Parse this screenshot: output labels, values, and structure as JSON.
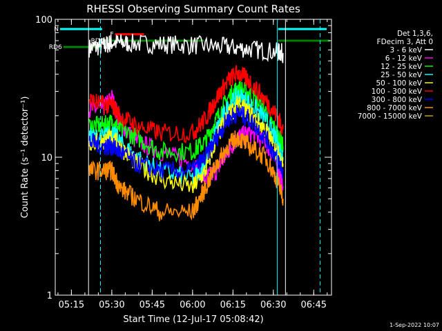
{
  "chart_data": {
    "type": "line",
    "title": "RHESSI Observing Summary Count Rates",
    "xlabel": "Start Time (12-Jul-17 05:08:42)",
    "ylabel": "Count Rate (s⁻¹ detector⁻¹)",
    "yscale": "log",
    "xlim": [
      5.15,
      6.86
    ],
    "ylim": [
      1,
      100
    ],
    "x_ticks": [
      {
        "t": 5.25,
        "label": "05:15"
      },
      {
        "t": 5.5,
        "label": "05:30"
      },
      {
        "t": 5.75,
        "label": "05:45"
      },
      {
        "t": 6.0,
        "label": "06:00"
      },
      {
        "t": 6.25,
        "label": "06:15"
      },
      {
        "t": 6.5,
        "label": "06:30"
      },
      {
        "t": 6.75,
        "label": "06:45"
      }
    ],
    "y_ticks": [
      {
        "v": 1,
        "label": "1"
      },
      {
        "v": 10,
        "label": "10"
      },
      {
        "v": 100,
        "label": "100"
      }
    ],
    "legend": {
      "placement": "right",
      "header": [
        "Det 1,3,6,",
        "FDecim 3, Att 0"
      ]
    },
    "series": [
      {
        "name": "3 - 6 keV",
        "color": "#ffffff",
        "x": [
          5.36,
          5.45,
          5.5,
          5.6,
          5.8,
          6.0,
          6.2,
          6.35,
          6.52,
          6.56
        ],
        "values": [
          62,
          64,
          68,
          67,
          66,
          65,
          63,
          61,
          58,
          57
        ]
      },
      {
        "name": "6 - 12 keV",
        "color": "#ff00ff",
        "x": [
          5.36,
          5.45,
          5.5,
          5.55,
          5.65,
          5.8,
          6.0,
          6.08,
          6.15,
          6.22,
          6.28,
          6.35,
          6.45,
          6.52,
          6.56
        ],
        "values": [
          22,
          23,
          27,
          18,
          13,
          11,
          9,
          7,
          8,
          11,
          14,
          15,
          13,
          9,
          6
        ]
      },
      {
        "name": "12 - 25 keV",
        "color": "#00ff00",
        "x": [
          5.36,
          5.45,
          5.5,
          5.55,
          5.65,
          5.8,
          6.0,
          6.08,
          6.15,
          6.22,
          6.28,
          6.35,
          6.45,
          6.52,
          6.56
        ],
        "values": [
          17,
          17,
          18,
          16,
          14,
          11,
          11,
          13,
          19,
          27,
          32,
          29,
          22,
          15,
          12
        ]
      },
      {
        "name": "25 - 50 keV",
        "color": "#00ffff",
        "x": [
          5.36,
          5.45,
          5.5,
          5.55,
          5.65,
          5.8,
          6.0,
          6.08,
          6.15,
          6.22,
          6.28,
          6.35,
          6.45,
          6.52,
          6.56
        ],
        "values": [
          14,
          14,
          15,
          13,
          10,
          8,
          7,
          9,
          16,
          23,
          28,
          25,
          19,
          13,
          10
        ]
      },
      {
        "name": "50 - 100 keV",
        "color": "#ffff00",
        "x": [
          5.36,
          5.45,
          5.5,
          5.55,
          5.65,
          5.8,
          6.0,
          6.08,
          6.15,
          6.22,
          6.28,
          6.35,
          6.45,
          6.52,
          6.56
        ],
        "values": [
          13,
          13,
          14,
          12,
          9,
          7,
          6,
          8,
          14,
          20,
          24,
          21,
          16,
          11,
          9
        ]
      },
      {
        "name": "100 - 300 keV",
        "color": "#ff0000",
        "x": [
          5.36,
          5.45,
          5.5,
          5.55,
          5.65,
          5.8,
          6.0,
          6.08,
          6.15,
          6.22,
          6.28,
          6.35,
          6.45,
          6.52,
          6.56
        ],
        "values": [
          26,
          24,
          24,
          20,
          17,
          15,
          15,
          19,
          27,
          36,
          41,
          36,
          26,
          20,
          16
        ]
      },
      {
        "name": "300 - 800 keV",
        "color": "#0000ff",
        "x": [
          5.36,
          5.45,
          5.5,
          5.55,
          5.65,
          5.8,
          6.0,
          6.08,
          6.15,
          6.22,
          6.28,
          6.35,
          6.45,
          6.52,
          6.56
        ],
        "values": [
          13,
          12,
          12,
          11,
          9,
          8,
          8,
          10,
          14,
          19,
          21,
          19,
          14,
          10,
          8
        ]
      },
      {
        "name": "800 - 7000 keV",
        "color": "#ff8c00",
        "x": [
          5.36,
          5.45,
          5.5,
          5.55,
          5.65,
          5.8,
          6.0,
          6.08,
          6.15,
          6.22,
          6.28,
          6.35,
          6.45,
          6.52,
          6.56
        ],
        "values": [
          8,
          8,
          8,
          6,
          5,
          4,
          4,
          6,
          9,
          12,
          14,
          12,
          10,
          7,
          5
        ]
      },
      {
        "name": "7000 - 15000 keV",
        "color": "#c8a000",
        "x": [],
        "values": []
      }
    ],
    "flags": [
      {
        "label": "N",
        "color": "#00ffff",
        "start": 5.18,
        "end": 5.44,
        "level": 85
      },
      {
        "label": "",
        "color": "#00ffff",
        "start": 6.53,
        "end": 6.83,
        "level": 85
      },
      {
        "label": "F",
        "color": "#ff0000",
        "start": 5.52,
        "end": 5.7,
        "level": 78
      },
      {
        "label": "RD0",
        "color": "#008000",
        "start": 5.46,
        "end": 6.07,
        "level": 70
      },
      {
        "label": "RD6",
        "color": "#008000",
        "start": 5.2,
        "end": 5.44,
        "level": 63
      },
      {
        "label": "",
        "color": "#008000",
        "start": 6.53,
        "end": 6.85,
        "level": 70
      }
    ],
    "vlines": [
      {
        "t": 5.356,
        "color": "#ffffff",
        "style": "solid"
      },
      {
        "t": 5.43,
        "color": "#00ffff",
        "style": "dashed"
      },
      {
        "t": 6.525,
        "color": "#00ffff",
        "style": "solid"
      },
      {
        "t": 6.575,
        "color": "#ffffff",
        "style": "solid"
      },
      {
        "t": 6.79,
        "color": "#00ffff",
        "style": "dashed"
      }
    ]
  },
  "footer": {
    "timestamp": "1-Sep-2022 10:07"
  }
}
